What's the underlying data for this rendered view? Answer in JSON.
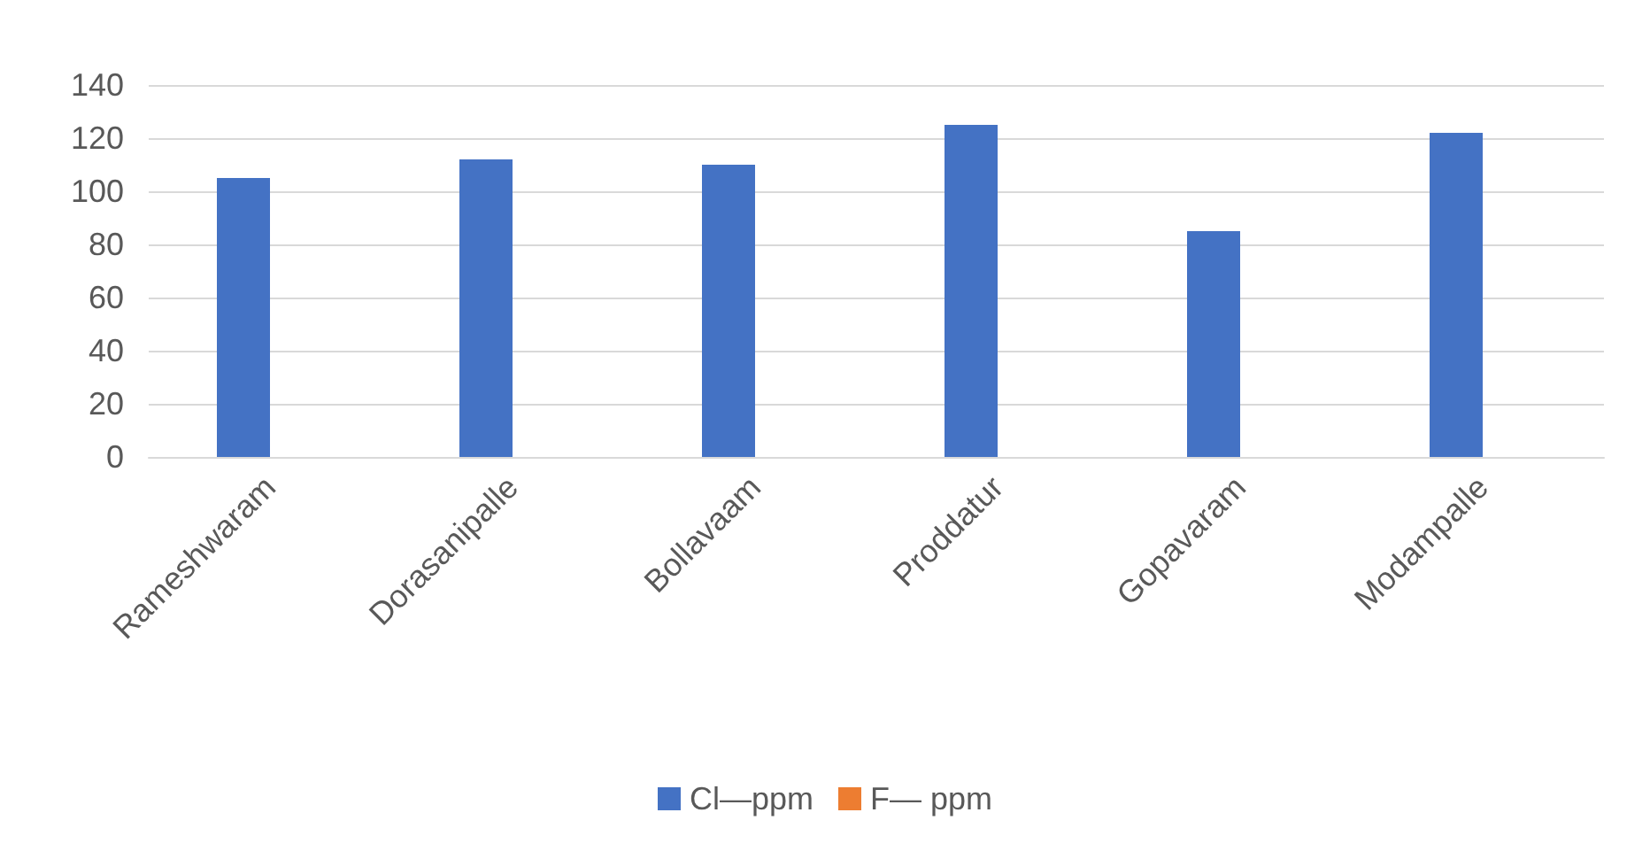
{
  "chart_data": {
    "type": "bar",
    "categories": [
      "Rameshwaram",
      "Dorasanipalle",
      "Bollavaam",
      "Proddatur",
      "Gopavaram",
      "Modampalle"
    ],
    "series": [
      {
        "name": "Cl—ppm",
        "color": "#4472c4",
        "values": [
          105,
          112,
          110,
          125,
          85,
          122
        ]
      },
      {
        "name": "F— ppm",
        "color": "#ed7d31",
        "values": [
          0,
          0,
          0,
          0,
          0,
          0
        ]
      }
    ],
    "ylim": [
      0,
      140
    ],
    "yticks": [
      0,
      20,
      40,
      60,
      80,
      100,
      120,
      140
    ],
    "grid": "y",
    "legend": "bottom"
  }
}
